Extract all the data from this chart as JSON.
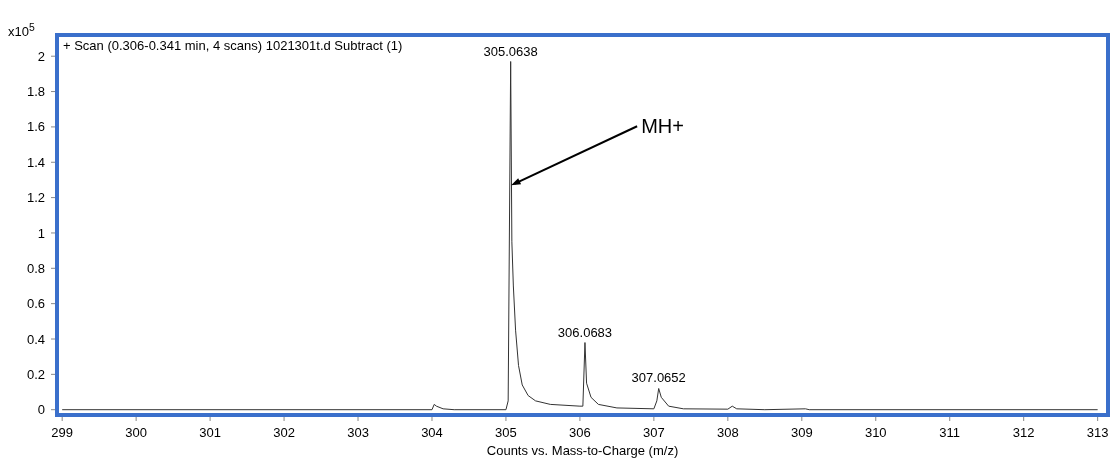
{
  "chart_data": {
    "type": "line",
    "title": "+ Scan (0.306-0.341 min, 4 scans) 1021301t.d  Subtract (1)",
    "xlabel": "Counts vs. Mass-to-Charge (m/z)",
    "ylabel": "x10$^{5}$",
    "x": [
      299.0,
      304.0,
      304.03,
      304.06,
      304.15,
      304.3,
      305.0,
      305.03,
      305.0638,
      305.08,
      305.1,
      305.13,
      305.17,
      305.22,
      305.3,
      305.4,
      305.6,
      306.0,
      306.04,
      306.0683,
      306.09,
      306.15,
      306.25,
      306.5,
      307.0,
      307.04,
      307.0652,
      307.1,
      307.2,
      307.4,
      308.0,
      308.06,
      308.12,
      308.5,
      309.05,
      309.1,
      313.0
    ],
    "series": [
      {
        "color": "#333333",
        "values": [
          0,
          0,
          0.03,
          0.02,
          0.005,
          0,
          0,
          0.05,
          1.97,
          0.95,
          0.7,
          0.45,
          0.25,
          0.14,
          0.08,
          0.05,
          0.03,
          0.02,
          0.02,
          0.38,
          0.15,
          0.07,
          0.03,
          0.01,
          0.005,
          0.05,
          0.12,
          0.07,
          0.02,
          0.005,
          0.003,
          0.02,
          0.005,
          0,
          0.005,
          0,
          0
        ]
      }
    ],
    "xlim": [
      298.93,
      313.14
    ],
    "ylim": [
      -0.03,
      2.12
    ],
    "xticks": [
      299,
      300,
      301,
      302,
      303,
      304,
      305,
      306,
      307,
      308,
      309,
      310,
      311,
      312,
      313
    ],
    "yticks": [
      0,
      0.2,
      0.4,
      0.6,
      0.8,
      1,
      1.2,
      1.4,
      1.6,
      1.8,
      2
    ],
    "grid": false,
    "marker": "none",
    "line_style": "solid",
    "annotations": [
      {
        "text": "305.0638",
        "x": 305.0638,
        "y": 1.97
      },
      {
        "text": "306.0683",
        "x": 306.0683,
        "y": 0.38
      },
      {
        "text": "307.0652",
        "x": 307.0652,
        "y": 0.12
      },
      {
        "text": "MH+",
        "x": 305.07,
        "y": 1.27
      }
    ]
  }
}
